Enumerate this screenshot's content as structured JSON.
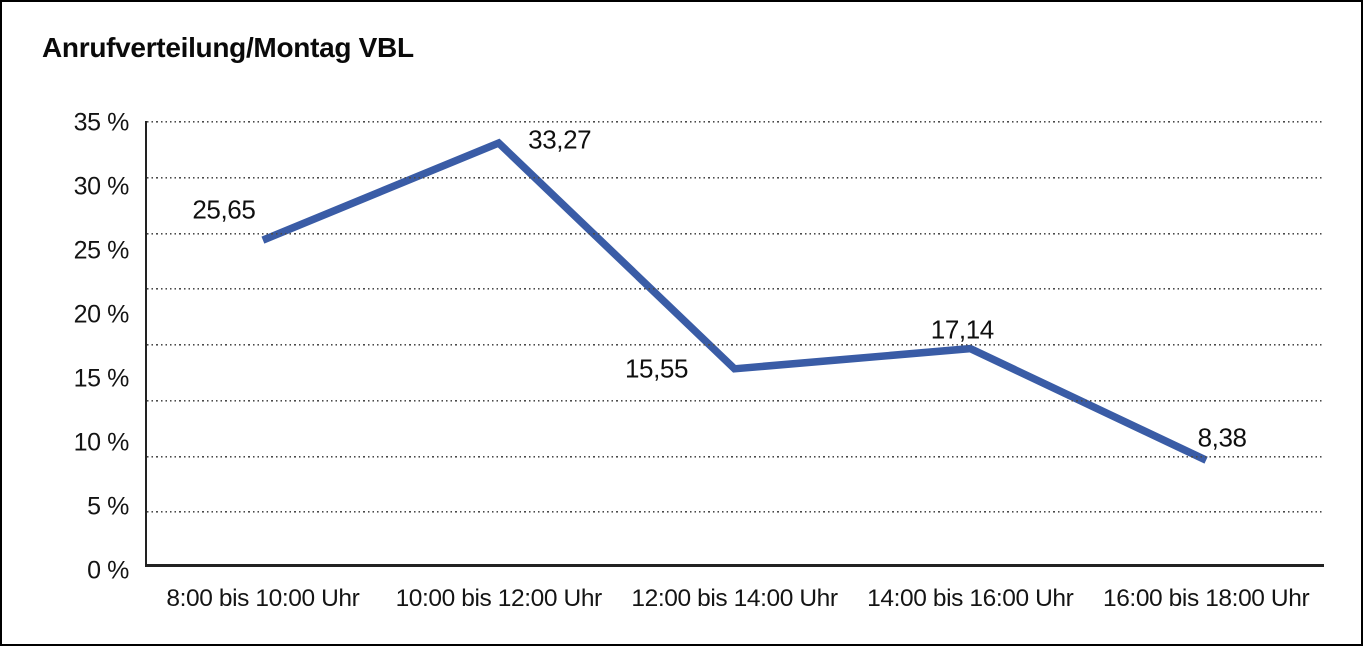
{
  "frame": {
    "background": "#ffffff",
    "border_color": "#000000"
  },
  "title": "Anrufverteilung/Montag VBL",
  "chart_data": {
    "type": "line",
    "title": "Anrufverteilung/Montag VBL",
    "categories": [
      "8:00 bis 10:00 Uhr",
      "10:00 bis 12:00 Uhr",
      "12:00 bis 14:00 Uhr",
      "14:00 bis 16:00 Uhr",
      "16:00 bis 18:00 Uhr"
    ],
    "values": [
      25.65,
      33.27,
      15.55,
      17.14,
      8.38
    ],
    "value_labels": [
      "25,65",
      "33,27",
      "15,55",
      "17,14",
      "8,38"
    ],
    "unit": "%",
    "ylabel": "",
    "xlabel": "",
    "ylim": [
      0,
      35
    ],
    "y_tick_step": 5,
    "y_tick_labels": [
      "35 %",
      "30 %",
      "25 %",
      "20 %",
      "15 %",
      "10 %",
      "5 %",
      "0 %"
    ],
    "grid": "horizontal-dotted",
    "gridline_count": 8,
    "legend": "none",
    "series": [
      {
        "name": "Anrufverteilung Montag VBL",
        "color": "#3a5ca6",
        "marker": "none",
        "line_width": 7.5
      }
    ]
  }
}
